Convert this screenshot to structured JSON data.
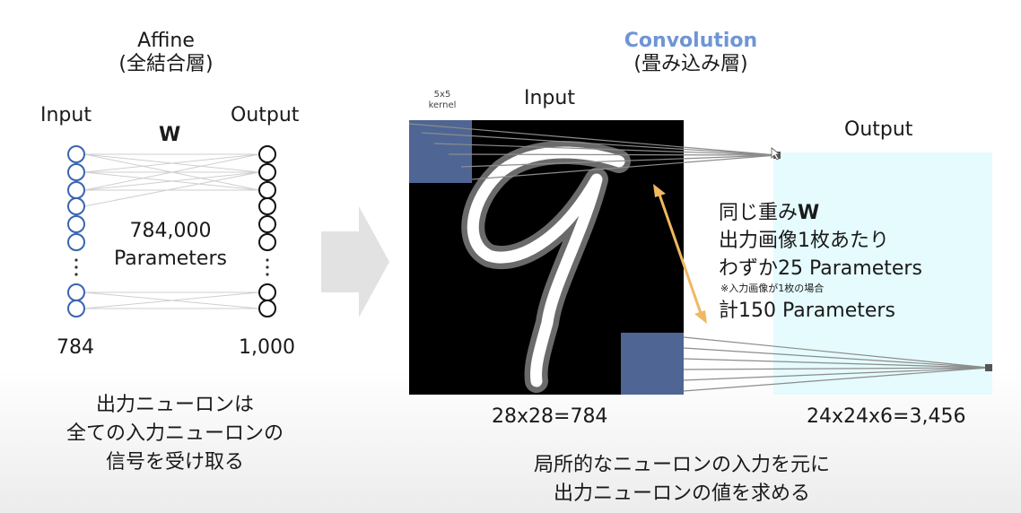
{
  "affine": {
    "title": "Affine",
    "subtitle": "(全結合層)",
    "input_label": "Input",
    "output_label": "Output",
    "weight_label": "W",
    "param_count": "784,000",
    "param_word": "Parameters",
    "input_count": "784",
    "output_count": "1,000",
    "caption": [
      "出力ニューロンは",
      "全ての入力ニューロンの",
      "信号を受け取る"
    ]
  },
  "convolution": {
    "title": "Convolution",
    "subtitle": "(畳み込み層)",
    "kernel_label": [
      "5x5",
      "kernel"
    ],
    "input_label": "Input",
    "output_label": "Output",
    "input_size": "28x28=784",
    "output_size": "24x24x6=3,456",
    "notes": {
      "shared_weight_prefix": "同じ重み",
      "shared_weight_symbol": "W",
      "per_image": "出力画像1枚あたり",
      "few_params": "わずか25 Parameters",
      "footnote": "※入力画像が1枚の場合",
      "total": "計150 Parameters"
    },
    "caption": [
      "局所的なニューロンの入力を元に",
      "出力ニューロンの値を求める"
    ]
  },
  "colors": {
    "title_highlight": "#6f95d4",
    "input_neuron": "#3a64b0",
    "kernel_overlay": "#5a74a8",
    "output_plane": "#e5fbfd",
    "arrow": "#f0b860",
    "big_arrow": "#e2e2e2"
  }
}
